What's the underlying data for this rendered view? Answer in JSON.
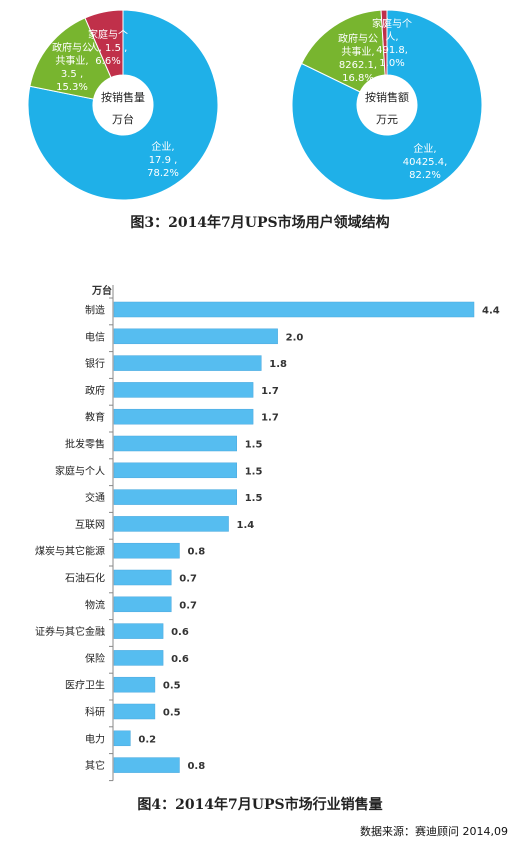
{
  "chart_data": [
    {
      "type": "pie",
      "center_label": [
        "按销售量",
        "万台"
      ],
      "slices": [
        {
          "name": "企业",
          "value": 17.9,
          "percent": "78.2%",
          "color": "#1fb0e8"
        },
        {
          "name": "政府与公共事业",
          "value": 3.5,
          "percent": "15.3%",
          "color": "#78b52f"
        },
        {
          "name": "家庭与个人",
          "value": 1.5,
          "percent": "6.6%",
          "color": "#c0304a"
        }
      ],
      "slice_labels": [
        [
          "企业,",
          "17.9 ,",
          "78.2%"
        ],
        [
          "政府与公",
          "共事业,",
          "3.5 ,",
          "15.3%"
        ],
        [
          "家庭与个",
          "人, 1.5 ,",
          "6.6%"
        ]
      ]
    },
    {
      "type": "pie",
      "center_label": [
        "按销售额",
        "万元"
      ],
      "slices": [
        {
          "name": "企业",
          "value": 40425.4,
          "percent": "82.2%",
          "color": "#1fb0e8"
        },
        {
          "name": "政府与公共事业",
          "value": 8262.1,
          "percent": "16.8%",
          "color": "#78b52f"
        },
        {
          "name": "家庭与个人",
          "value": 491.8,
          "percent": "1.0%",
          "color": "#c0304a"
        }
      ],
      "slice_labels": [
        [
          "企业,",
          "40425.4,",
          "82.2%"
        ],
        [
          "政府与公",
          "共事业,",
          "8262.1,",
          "16.8%"
        ],
        [
          "家庭与个",
          "人,",
          "491.8,",
          "1.0%"
        ]
      ]
    },
    {
      "type": "bar",
      "orientation": "horizontal",
      "unit_label": "万台",
      "color": "#56bdf0",
      "categories": [
        "制造",
        "电信",
        "银行",
        "政府",
        "教育",
        "批发零售",
        "家庭与个人",
        "交通",
        "互联网",
        "煤炭与其它能源",
        "石油石化",
        "物流",
        "证券与其它金融",
        "保险",
        "医疗卫生",
        "科研",
        "电力",
        "其它"
      ],
      "values": [
        4.4,
        2.0,
        1.8,
        1.7,
        1.7,
        1.5,
        1.5,
        1.5,
        1.4,
        0.8,
        0.7,
        0.7,
        0.6,
        0.6,
        0.5,
        0.5,
        0.2,
        0.8
      ],
      "value_labels": [
        "4.4",
        "2.0",
        "1.8",
        "1.7",
        "1.7",
        "1.5",
        "1.5",
        "1.5",
        "1.4",
        "0.8",
        "0.7",
        "0.7",
        "0.6",
        "0.6",
        "0.5",
        "0.5",
        "0.2",
        "0.8"
      ]
    }
  ],
  "captions": {
    "fig3": "图3：2014年7月UPS市场用户领域结构",
    "fig4": "图4：2014年7月UPS市场行业销售量"
  },
  "source": "数据来源：赛迪顾问 2014,09"
}
